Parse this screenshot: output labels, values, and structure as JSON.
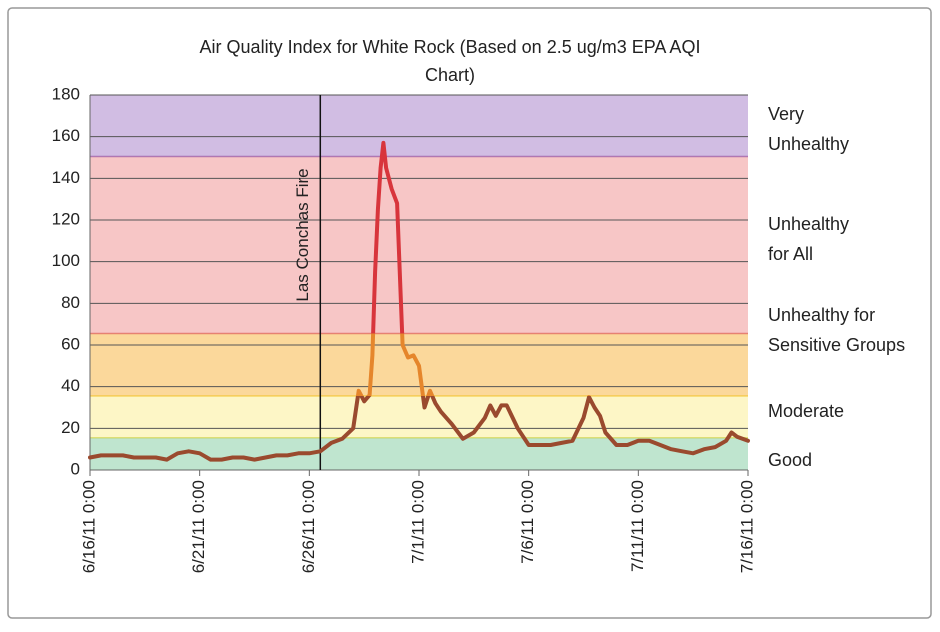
{
  "chart_data": {
    "type": "line",
    "title": [
      "Air Quality Index for White Rock (Based on 2.5 ug/m3 EPA AQI",
      "Chart)"
    ],
    "x": [
      "6/16/11 0:00",
      "6/16/11 12:00",
      "6/17/11 0:00",
      "6/17/11 12:00",
      "6/18/11 0:00",
      "6/18/11 12:00",
      "6/19/11 0:00",
      "6/19/11 12:00",
      "6/20/11 0:00",
      "6/20/11 12:00",
      "6/21/11 0:00",
      "6/21/11 12:00",
      "6/22/11 0:00",
      "6/22/11 12:00",
      "6/23/11 0:00",
      "6/23/11 12:00",
      "6/24/11 0:00",
      "6/24/11 12:00",
      "6/25/11 0:00",
      "6/25/11 12:00",
      "6/26/11 0:00",
      "6/26/11 12:00",
      "6/27/11 0:00",
      "6/27/11 12:00",
      "6/28/11 0:00",
      "6/28/11 6:00",
      "6/28/11 12:00",
      "6/28/11 18:00",
      "6/28/11 21:00",
      "6/29/11 0:00",
      "6/29/11 3:00",
      "6/29/11 6:00",
      "6/29/11 9:00",
      "6/29/11 12:00",
      "6/29/11 18:00",
      "6/30/11 0:00",
      "6/30/11 6:00",
      "6/30/11 12:00",
      "6/30/11 18:00",
      "7/1/11 0:00",
      "7/1/11 6:00",
      "7/1/11 12:00",
      "7/1/11 18:00",
      "7/2/11 0:00",
      "7/2/11 12:00",
      "7/3/11 0:00",
      "7/3/11 12:00",
      "7/4/11 0:00",
      "7/4/11 6:00",
      "7/4/11 12:00",
      "7/4/11 18:00",
      "7/5/11 0:00",
      "7/5/11 12:00",
      "7/6/11 0:00",
      "7/6/11 12:00",
      "7/7/11 0:00",
      "7/7/11 12:00",
      "7/8/11 0:00",
      "7/8/11 12:00",
      "7/8/11 18:00",
      "7/9/11 0:00",
      "7/9/11 6:00",
      "7/9/11 12:00",
      "7/10/11 0:00",
      "7/10/11 12:00",
      "7/11/11 0:00",
      "7/11/11 12:00",
      "7/12/11 0:00",
      "7/12/11 12:00",
      "7/13/11 0:00",
      "7/13/11 12:00",
      "7/14/11 0:00",
      "7/14/11 12:00",
      "7/15/11 0:00",
      "7/15/11 6:00",
      "7/15/11 12:00",
      "7/15/11 18:00",
      "7/16/11 0:00"
    ],
    "values": [
      6,
      7,
      7,
      7,
      6,
      6,
      6,
      5,
      8,
      9,
      8,
      5,
      5,
      6,
      6,
      5,
      6,
      7,
      7,
      8,
      8,
      9,
      13,
      15,
      20,
      38,
      33,
      36,
      55,
      95,
      125,
      145,
      157,
      145,
      135,
      128,
      60,
      54,
      55,
      50,
      30,
      38,
      32,
      28,
      22,
      15,
      18,
      25,
      31,
      26,
      31,
      31,
      20,
      12,
      12,
      12,
      13,
      14,
      25,
      35,
      30,
      26,
      18,
      12,
      12,
      14,
      14,
      12,
      10,
      9,
      8,
      10,
      11,
      14,
      18,
      16,
      15,
      14
    ],
    "xlim": [
      "6/16/11 0:00",
      "7/16/11 0:00"
    ],
    "xticks": [
      "6/16/11 0:00",
      "6/21/11 0:00",
      "6/26/11 0:00",
      "7/1/11 0:00",
      "7/6/11 0:00",
      "7/11/11 0:00",
      "7/16/11 0:00"
    ],
    "ylim": [
      0,
      180
    ],
    "yticks": [
      0,
      20,
      40,
      60,
      80,
      100,
      120,
      140,
      160,
      180
    ],
    "grid": true,
    "bands": [
      {
        "label": [
          "Good"
        ],
        "from": 0,
        "to": 15.5,
        "color": "#bfe5cf",
        "text_color": "#2fa85a",
        "line_color": "#9a4a2e"
      },
      {
        "label": [
          "Moderate"
        ],
        "from": 15.5,
        "to": 35.5,
        "color": "#fdf6c6",
        "text_color": "#c8c81a",
        "line_color": "#9a4a2e"
      },
      {
        "label": [
          "Unhealthy for",
          "Sensitive Groups"
        ],
        "from": 35.5,
        "to": 65.5,
        "color": "#fbd89b",
        "text_color": "#f0b800",
        "line_color": "#e5862c"
      },
      {
        "label": [
          "Unhealthy",
          "for All"
        ],
        "from": 65.5,
        "to": 150.5,
        "color": "#f7c6c6",
        "text_color": "#d3312f",
        "line_color": "#d8353c"
      },
      {
        "label": [
          "Very",
          "Unhealthy"
        ],
        "from": 150.5,
        "to": 180,
        "color": "#d1bde3",
        "text_color": "#7a2a8e",
        "line_color": "#d8353c"
      }
    ],
    "annotation": {
      "text": "Las Conchas Fire",
      "x": "6/26/11 12:00"
    }
  }
}
